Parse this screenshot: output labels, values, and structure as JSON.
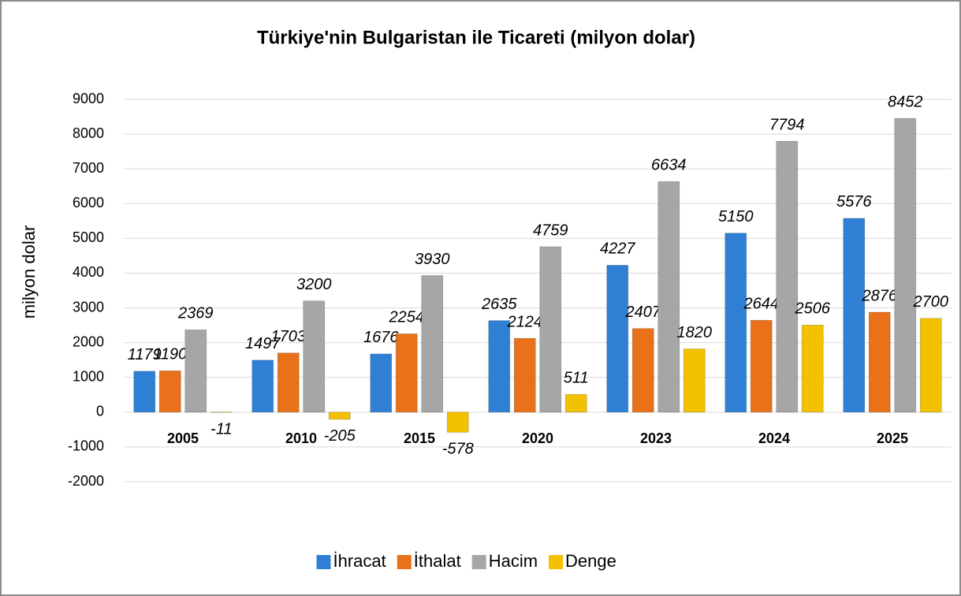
{
  "chart_data": {
    "type": "bar",
    "title": "Türkiye'nin Bulgaristan ile Ticareti (milyon dolar)",
    "y_label": "milyon dolar",
    "categories": [
      "2005",
      "2010",
      "2015",
      "2020",
      "2023",
      "2024",
      "2025"
    ],
    "series": [
      {
        "name": "İhracat",
        "color": "#2f80d4",
        "values": [
          1179,
          1497,
          1676,
          2635,
          4227,
          5150,
          5576
        ]
      },
      {
        "name": "İthalat",
        "color": "#e8711a",
        "values": [
          1190,
          1703,
          2254,
          2124,
          2407,
          2644,
          2876
        ]
      },
      {
        "name": "Hacim",
        "color": "#a6a6a6",
        "values": [
          2369,
          3200,
          3930,
          4759,
          6634,
          7794,
          8452
        ]
      },
      {
        "name": "Denge",
        "color": "#f2c200",
        "values": [
          -11,
          -205,
          -578,
          511,
          1820,
          2506,
          2700
        ]
      }
    ],
    "ylim": [
      -2000,
      9000
    ],
    "yticks": [
      -2000,
      -1000,
      0,
      1000,
      2000,
      3000,
      4000,
      5000,
      6000,
      7000,
      8000,
      9000
    ],
    "grid": true,
    "legend": "bottom"
  }
}
